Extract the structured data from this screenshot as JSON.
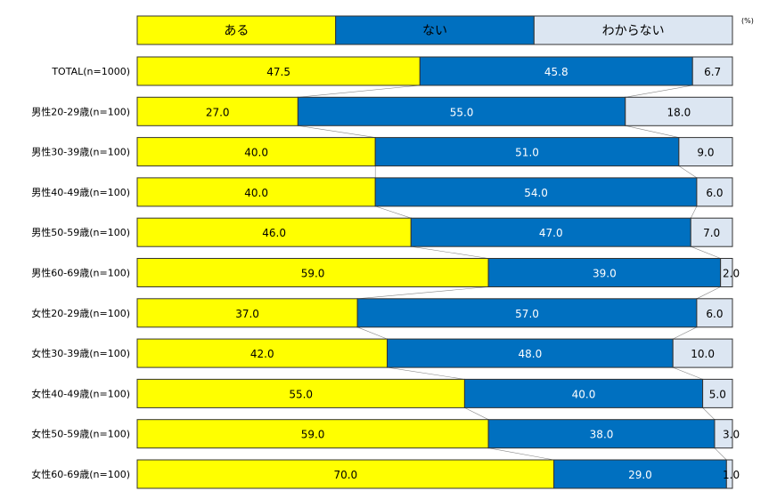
{
  "chart_data": {
    "type": "bar",
    "stacked": true,
    "orientation": "horizontal",
    "unit": "(%)",
    "legend_position": "top",
    "categories": [
      "TOTAL(n=1000)",
      "男性20-29歳(n=100)",
      "男性30-39歳(n=100)",
      "男性40-49歳(n=100)",
      "男性50-59歳(n=100)",
      "男性60-69歳(n=100)",
      "女性20-29歳(n=100)",
      "女性30-39歳(n=100)",
      "女性40-49歳(n=100)",
      "女性50-59歳(n=100)",
      "女性60-69歳(n=100)"
    ],
    "series": [
      {
        "name": "ある",
        "color": "#FFFF00",
        "text_color": "#000000",
        "values": [
          47.5,
          27.0,
          40.0,
          40.0,
          46.0,
          59.0,
          37.0,
          42.0,
          55.0,
          59.0,
          70.0
        ]
      },
      {
        "name": "ない",
        "color": "#0070C0",
        "text_color": "#FFFFFF",
        "values": [
          45.8,
          55.0,
          51.0,
          54.0,
          47.0,
          39.0,
          57.0,
          48.0,
          40.0,
          38.0,
          29.0
        ]
      },
      {
        "name": "わからない",
        "color": "#DCE6F2",
        "text_color": "#000000",
        "values": [
          6.7,
          18.0,
          9.0,
          6.0,
          7.0,
          2.0,
          6.0,
          10.0,
          5.0,
          3.0,
          1.0
        ]
      }
    ],
    "xlim": [
      0,
      100
    ],
    "grid": false
  }
}
